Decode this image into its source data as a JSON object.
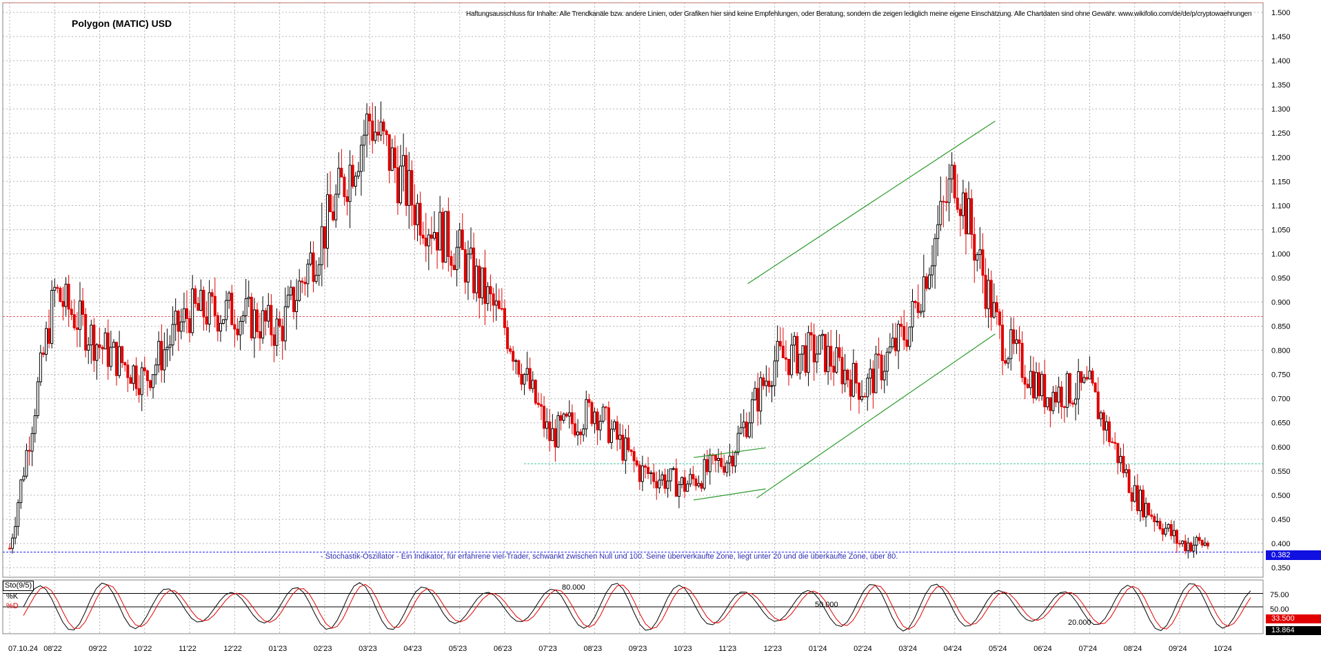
{
  "chart_data": {
    "type": "candlestick",
    "title": "Polygon (MATIC) USD",
    "disclaimer": "Haftungsausschluss für Inhalte: Alle Trendkanäle bzw. andere Linien, oder Grafiken hier sind keine Empfehlungen, oder Beratung, sondern die zeigen lediglich meine eigene Einschätzung. Alle Chartdaten sind ohne Gewähr. www.wikifolio.com/de/de/p/cryptowaehrungen",
    "note": "- Stochastik-Oszillator - Ein Indikator, für erfahrene viel-Trader, schwankt zwischen Null und 100. Seine überverkaufte Zone, liegt unter 20 und die überkaufte Zone, über 80.",
    "x_ticks": [
      "07.10.24",
      "08'22",
      "09'22",
      "10'22",
      "11'22",
      "12'22",
      "01'23",
      "02'23",
      "03'23",
      "04'23",
      "05'23",
      "06'23",
      "07'23",
      "08'23",
      "09'23",
      "10'23",
      "11'23",
      "12'23",
      "01'24",
      "02'24",
      "03'24",
      "04'24",
      "05'24",
      "06'24",
      "07'24",
      "08'24",
      "09'24",
      "10'24"
    ],
    "y_ticks": [
      "1.500",
      "1.450",
      "1.400",
      "1.350",
      "1.300",
      "1.250",
      "1.200",
      "1.150",
      "1.100",
      "1.050",
      "1.000",
      "0.950",
      "0.900",
      "0.850",
      "0.800",
      "0.750",
      "0.700",
      "0.650",
      "0.600",
      "0.550",
      "0.500",
      "0.450",
      "0.400",
      "0.350"
    ],
    "ylim": [
      0.33,
      1.52
    ],
    "grid": true,
    "last_price": "0.382",
    "monthly_close": [
      0.39,
      0.92,
      0.81,
      0.74,
      0.88,
      0.88,
      0.84,
      1.05,
      1.28,
      1.1,
      1.0,
      0.85,
      0.62,
      0.68,
      0.55,
      0.52,
      0.58,
      0.78,
      0.8,
      0.72,
      0.85,
      1.17,
      0.83,
      0.71,
      0.72,
      0.5,
      0.4,
      0.4,
      0.382
    ],
    "trendlines": [
      {
        "x": [
          15.2,
          16.8
        ],
        "y": [
          0.49,
          0.513
        ]
      },
      {
        "x": [
          15.2,
          16.8
        ],
        "y": [
          0.578,
          0.598
        ]
      },
      {
        "x": [
          16.6,
          21.9
        ],
        "y": [
          0.494,
          0.834
        ]
      },
      {
        "x": [
          16.4,
          21.9
        ],
        "y": [
          0.938,
          1.275
        ]
      }
    ],
    "hlines": [
      {
        "y": 0.565,
        "color": "#40c0a0",
        "label": ""
      },
      {
        "y": 0.87,
        "color": "#e06060",
        "label": ""
      },
      {
        "y": 0.382,
        "color": "#2020ff",
        "label": ""
      },
      {
        "y": 1.52,
        "color": "#e06060",
        "label": ""
      }
    ],
    "oscillator": {
      "name": "Sto(9/5)",
      "k_label": "%K",
      "d_label": "%D",
      "levels": [
        "75.00",
        "50.00"
      ],
      "annotations": [
        "80.000",
        "50.000",
        "20.000"
      ],
      "k_last": "33.500",
      "d_last": "13.864",
      "ylim": [
        0,
        100
      ]
    }
  },
  "colors": {
    "up": "#000000",
    "down": "#e00000",
    "grid": "#b0b0b0",
    "trend": "#2a9a2a"
  }
}
